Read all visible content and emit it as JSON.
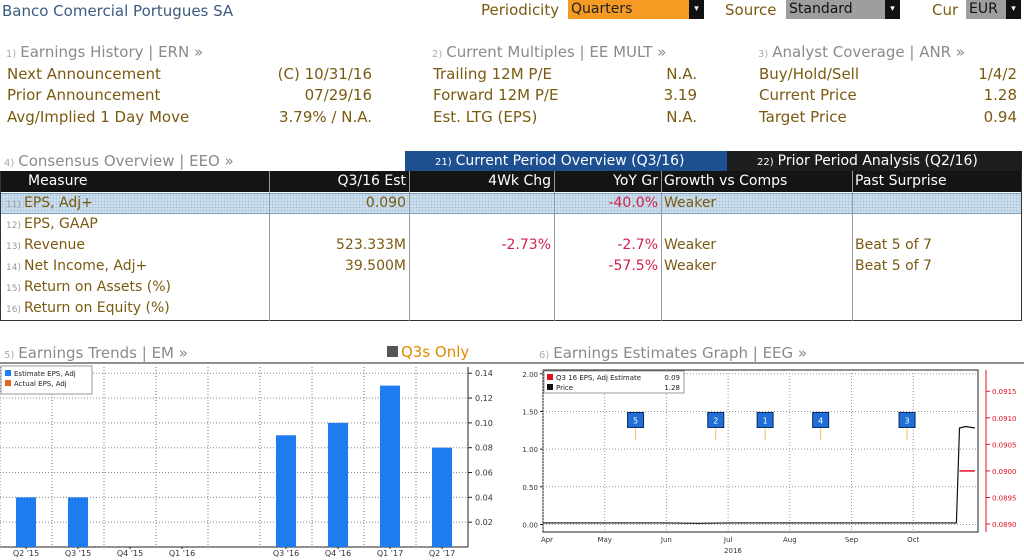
{
  "header": {
    "company": "Banco Comercial Portugues SA",
    "periodicity_label": "Periodicity",
    "periodicity_value": "Quarters",
    "source_label": "Source",
    "source_value": "Standard",
    "cur_label": "Cur",
    "cur_value": "EUR",
    "dropdown_icon": "▾"
  },
  "earnings_history": {
    "num": "1)",
    "title": "Earnings History | ERN »",
    "rows": [
      {
        "label": "Next Announcement",
        "value": "(C)  10/31/16"
      },
      {
        "label": "Prior Announcement",
        "value": "07/29/16"
      },
      {
        "label": "Avg/Implied 1 Day Move",
        "value": "3.79% / N.A."
      }
    ]
  },
  "current_multiples": {
    "num": "2)",
    "title": "Current Multiples | EE MULT »",
    "rows": [
      {
        "label": "Trailing 12M P/E",
        "value": "N.A."
      },
      {
        "label": "Forward 12M P/E",
        "value": "3.19"
      },
      {
        "label": "Est. LTG (EPS)",
        "value": "N.A."
      }
    ]
  },
  "analyst_coverage": {
    "num": "3)",
    "title": "Analyst Coverage | ANR »",
    "rows": [
      {
        "label": "Buy/Hold/Sell",
        "value": "1/4/2"
      },
      {
        "label": "Current Price",
        "value": "1.28"
      },
      {
        "label": "Target Price",
        "value": "0.94"
      }
    ]
  },
  "consensus": {
    "num": "4)",
    "title": "Consensus Overview | EEO »",
    "tab_current": {
      "num": "21)",
      "label": "Current Period Overview (Q3/16)"
    },
    "tab_prior": {
      "num": "22)",
      "label": "Prior Period Analysis (Q2/16)"
    },
    "columns": [
      "Measure",
      "Q3/16 Est",
      "4Wk Chg",
      "YoY Gr",
      "Growth vs Comps",
      "Past Surprise"
    ],
    "rows": [
      {
        "num": "11)",
        "measure": "EPS, Adj+",
        "est": "0.090",
        "chg": "",
        "yoy": "-40.0%",
        "comps": "Weaker",
        "surprise": ""
      },
      {
        "num": "12)",
        "measure": "EPS, GAAP",
        "est": "",
        "chg": "",
        "yoy": "",
        "comps": "",
        "surprise": ""
      },
      {
        "num": "13)",
        "measure": "Revenue",
        "est": "523.333M",
        "chg": "-2.73%",
        "yoy": "-2.7%",
        "comps": "Weaker",
        "surprise": "Beat 5 of 7"
      },
      {
        "num": "14)",
        "measure": "Net Income, Adj+",
        "est": "39.500M",
        "chg": "",
        "yoy": "-57.5%",
        "comps": "Weaker",
        "surprise": "Beat 5 of 7"
      },
      {
        "num": "15)",
        "measure": "Return on Assets (%)",
        "est": "",
        "chg": "",
        "yoy": "",
        "comps": "",
        "surprise": ""
      },
      {
        "num": "16)",
        "measure": "Return on Equity (%)",
        "est": "",
        "chg": "",
        "yoy": "",
        "comps": "",
        "surprise": ""
      }
    ]
  },
  "earnings_trends": {
    "num": "5)",
    "title": "Earnings Trends | EM »",
    "toggle_label": "Q3s Only",
    "legend": [
      {
        "label": "Estimate EPS, Adj",
        "color": "#1e7bf0"
      },
      {
        "label": "Actual EPS, Adj",
        "color": "#e0641e"
      }
    ]
  },
  "earnings_estimates": {
    "num": "6)",
    "title": "Earnings Estimates Graph | EEG »",
    "legend": [
      {
        "label": "Q3 16 EPS, Adj Estimate",
        "value": "0.09",
        "color": "#e0101e"
      },
      {
        "label": "Price",
        "value": "1.28",
        "color": "#111111"
      }
    ]
  },
  "chart_data": [
    {
      "type": "bar",
      "categories": [
        "Q2 '15",
        "Q3 '15",
        "Q4 '15",
        "Q1 '16",
        "",
        "Q3 '16",
        "Q4 '16",
        "Q1 '17",
        "Q2 '17"
      ],
      "category_positions": [
        0.5,
        1.5,
        2.5,
        3.5,
        4.5,
        5.5,
        6.5,
        7.5,
        8.5
      ],
      "xlim": [
        0,
        9
      ],
      "series": [
        {
          "name": "Estimate EPS, Adj",
          "color": "#1e7bf0",
          "x": [
            0.5,
            1.5,
            5.5,
            6.5,
            7.5,
            8.5
          ],
          "values": [
            0.04,
            0.04,
            0.09,
            0.1,
            0.13,
            0.08
          ]
        },
        {
          "name": "Actual EPS, Adj",
          "color": "#e0641e",
          "x": [],
          "values": []
        }
      ],
      "ylim": [
        0,
        0.145
      ],
      "yticks": [
        0.02,
        0.04,
        0.06,
        0.08,
        0.1,
        0.12,
        0.14
      ],
      "ytick_labels": [
        "0.02",
        "0.04",
        "0.06",
        "0.08",
        "0.10",
        "0.12",
        "0.14"
      ],
      "y_axis_side": "right",
      "legend_position": "top-left",
      "grid": true
    },
    {
      "type": "line",
      "x_months": [
        "Apr",
        "May",
        "Jun",
        "Jul",
        "Aug",
        "Sep",
        "Oct"
      ],
      "x_year_label": "2016",
      "xlim": [
        0,
        7.05
      ],
      "month_positions": [
        0,
        1,
        2,
        3,
        4,
        5,
        6
      ],
      "left_axis": {
        "ylim": [
          -0.1,
          2.05
        ],
        "ticks": [
          0.0,
          0.5,
          1.0,
          1.5,
          2.0
        ],
        "labels": [
          "0.00",
          "0.50",
          "1.00",
          "1.50",
          "2.00"
        ]
      },
      "right_axis": {
        "ylim": [
          0.08885,
          0.0919
        ],
        "ticks": [
          0.089,
          0.0895,
          0.09,
          0.0905,
          0.091,
          0.0915
        ],
        "labels": [
          "0.0890",
          "0.0895",
          "0.0900",
          "0.0905",
          "0.0910",
          "0.0915"
        ]
      },
      "series": [
        {
          "name": "Price",
          "axis": "left",
          "color": "#111111",
          "x": [
            0,
            1,
            2,
            2.5,
            3,
            4,
            5,
            6,
            6.7,
            6.75,
            6.85,
            7.0
          ],
          "y": [
            0.02,
            0.02,
            0.02,
            0.015,
            0.02,
            0.02,
            0.02,
            0.02,
            0.02,
            1.28,
            1.3,
            1.28
          ]
        },
        {
          "name": "Q3 16 EPS, Adj Estimate",
          "axis": "right",
          "color": "#e0101e",
          "x": [
            6.75,
            7.0
          ],
          "y": [
            0.09,
            0.09
          ]
        }
      ],
      "markers": [
        {
          "label": "5",
          "x": 1.5,
          "y": 1.38
        },
        {
          "label": "2",
          "x": 2.8,
          "y": 1.38
        },
        {
          "label": "1",
          "x": 3.6,
          "y": 1.38
        },
        {
          "label": "4",
          "x": 4.5,
          "y": 1.38
        },
        {
          "label": "3",
          "x": 5.9,
          "y": 1.38
        }
      ],
      "legend_position": "top-left",
      "grid": true
    }
  ]
}
